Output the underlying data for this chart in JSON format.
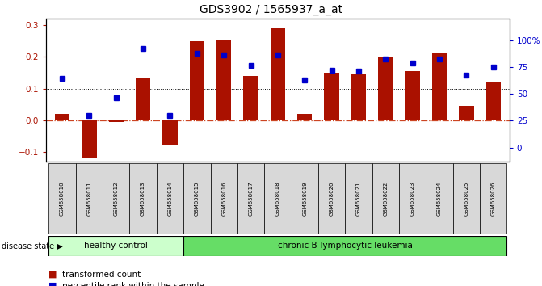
{
  "title": "GDS3902 / 1565937_a_at",
  "samples": [
    "GSM658010",
    "GSM658011",
    "GSM658012",
    "GSM658013",
    "GSM658014",
    "GSM658015",
    "GSM658016",
    "GSM658017",
    "GSM658018",
    "GSM658019",
    "GSM658020",
    "GSM658021",
    "GSM658022",
    "GSM658023",
    "GSM658024",
    "GSM658025",
    "GSM658026"
  ],
  "bar_values": [
    0.02,
    -0.12,
    -0.005,
    0.135,
    -0.08,
    0.25,
    0.255,
    0.14,
    0.29,
    0.02,
    0.15,
    0.145,
    0.2,
    0.155,
    0.21,
    0.045,
    0.12
  ],
  "dot_values": [
    0.133,
    0.015,
    0.072,
    0.225,
    0.015,
    0.21,
    0.205,
    0.172,
    0.205,
    0.127,
    0.158,
    0.155,
    0.193,
    0.18,
    0.193,
    0.143,
    0.168
  ],
  "healthy_count": 5,
  "bar_color": "#aa1100",
  "dot_color": "#0000cc",
  "healthy_color": "#ccffcc",
  "leukemia_color": "#66dd66",
  "ylim": [
    -0.13,
    0.32
  ],
  "y2lim": [
    -13,
    120
  ],
  "yticks": [
    -0.1,
    0.0,
    0.1,
    0.2,
    0.3
  ],
  "y2ticks": [
    0,
    25,
    50,
    75,
    100
  ],
  "hline_dotted": [
    0.1,
    0.2
  ],
  "hline_zero_color": "#cc4422",
  "bg_color": "#ffffff",
  "label_transformed": "transformed count",
  "label_percentile": "percentile rank within the sample",
  "label_disease": "disease state",
  "label_healthy": "healthy control",
  "label_leukemia": "chronic B-lymphocytic leukemia"
}
